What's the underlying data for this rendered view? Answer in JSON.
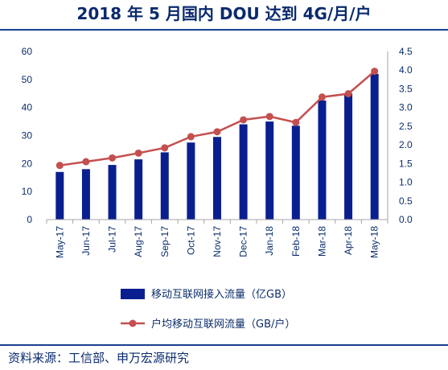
{
  "title": "2018 年 5 月国内 DOU 达到 4G/月/户",
  "source": "资料来源：工信部、申万宏源研究",
  "chart_data": {
    "type": "bar+line",
    "categories": [
      "May-17",
      "Jun-17",
      "Jul-17",
      "Aug-17",
      "Sep-17",
      "Oct-17",
      "Nov-17",
      "Dec-17",
      "Jan-18",
      "Feb-18",
      "Mar-18",
      "Apr-18",
      "May-18"
    ],
    "series": [
      {
        "name": "移动互联网接入流量（亿GB）",
        "type": "bar",
        "axis": "left",
        "color": "#0a1f8f",
        "values": [
          17,
          18,
          19.5,
          21.5,
          24,
          27.5,
          29.5,
          34,
          35,
          33.5,
          42.5,
          45,
          52
        ]
      },
      {
        "name": "户均移动互联网流量（GB/户）",
        "type": "line",
        "axis": "right",
        "color": "#c44f4f",
        "values": [
          1.45,
          1.55,
          1.65,
          1.78,
          1.92,
          2.22,
          2.35,
          2.67,
          2.76,
          2.6,
          3.28,
          3.37,
          3.97
        ]
      }
    ],
    "y_left": {
      "ticks": [
        "0",
        "10",
        "20",
        "30",
        "40",
        "50",
        "60"
      ],
      "ylim": [
        0,
        60
      ]
    },
    "y_right": {
      "ticks": [
        "0.0",
        "0.5",
        "1.0",
        "1.5",
        "2.0",
        "2.5",
        "3.0",
        "3.5",
        "4.0",
        "4.5"
      ],
      "ylim": [
        0,
        4.5
      ]
    },
    "legend_position": "bottom",
    "grid": false
  }
}
